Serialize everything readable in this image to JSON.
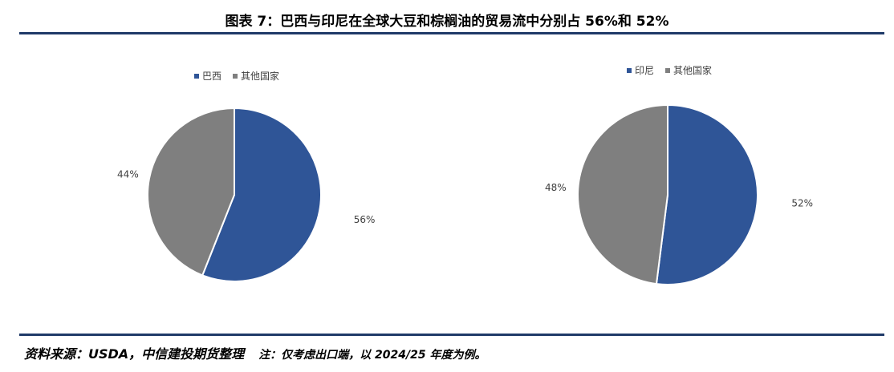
{
  "title": "图表 7：巴西与印尼在全球大豆和棕榈油的贸易流中分别占 56%和 52%",
  "source": "资料来源：USDA，中信建投期货整理",
  "note": "注：仅考虑出口端，以 2024/25 年度为例。",
  "chart_data": [
    {
      "type": "pie",
      "categories": [
        "巴西",
        "其他国家"
      ],
      "values": [
        56,
        44
      ],
      "labels": [
        "56%",
        "44%"
      ],
      "colors": [
        "#2f5597",
        "#7f7f7f"
      ],
      "legend": "top",
      "title": ""
    },
    {
      "type": "pie",
      "categories": [
        "印尼",
        "其他国家"
      ],
      "values": [
        52,
        48
      ],
      "labels": [
        "52%",
        "48%"
      ],
      "colors": [
        "#2f5597",
        "#7f7f7f"
      ],
      "legend": "top",
      "title": ""
    }
  ]
}
